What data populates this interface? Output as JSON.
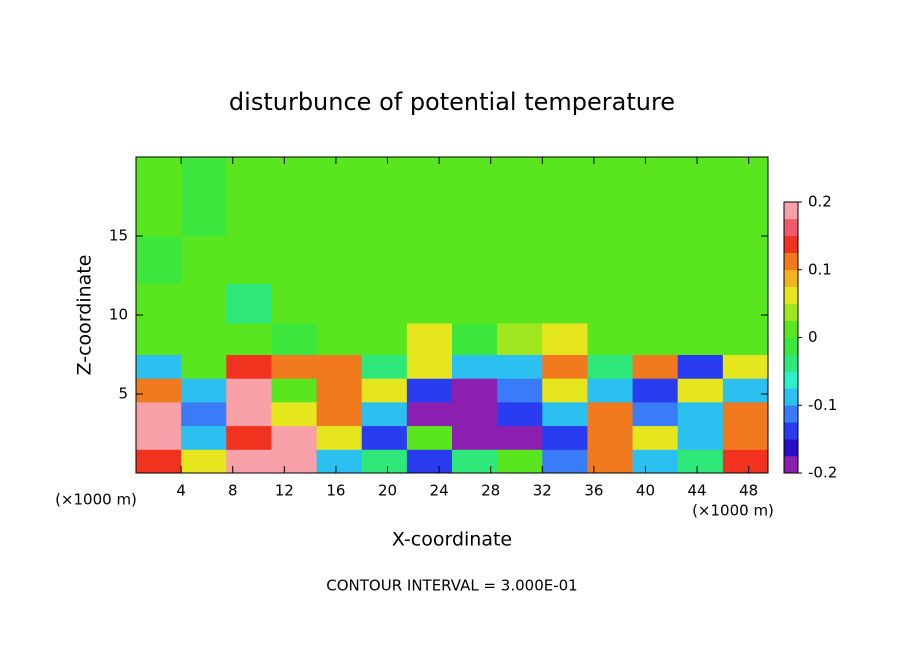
{
  "chart_data": {
    "type": "heatmap",
    "title": "disturbunce of potential temperature",
    "x_label": "X-coordinate",
    "y_label": "Z-coordinate",
    "x_unit": "(×1000 m)",
    "x_unit_right": "(×1000 m)",
    "footnote": "CONTOUR INTERVAL = 3.000E-01",
    "xlim": [
      0.5,
      49.5
    ],
    "ylim": [
      0,
      20
    ],
    "xticks": [
      4,
      8,
      12,
      16,
      20,
      24,
      28,
      32,
      36,
      40,
      44,
      48
    ],
    "yticks": [
      5,
      10,
      15
    ],
    "x_edges": [
      0.5,
      4,
      7.5,
      11,
      14.5,
      18,
      21.5,
      25,
      28.5,
      32,
      35.5,
      39,
      42.5,
      46,
      49.5
    ],
    "y_edges": [
      0,
      1.5,
      3,
      4.5,
      6,
      7.5,
      9.5,
      12,
      15,
      20
    ],
    "z": [
      [
        0.15,
        0.05,
        0.2,
        0.2,
        -0.1,
        -0.05,
        -0.15,
        -0.05,
        0.0,
        -0.12,
        0.1,
        -0.1,
        -0.05,
        0.15
      ],
      [
        0.2,
        -0.1,
        0.15,
        0.2,
        0.05,
        -0.15,
        0.0,
        -0.2,
        -0.2,
        -0.15,
        0.12,
        0.05,
        -0.1,
        0.1
      ],
      [
        0.2,
        -0.12,
        0.18,
        0.05,
        0.1,
        -0.1,
        -0.18,
        -0.2,
        -0.15,
        -0.1,
        0.1,
        -0.12,
        -0.1,
        0.12
      ],
      [
        0.1,
        -0.1,
        0.2,
        0.0,
        0.12,
        0.05,
        -0.15,
        -0.2,
        -0.12,
        0.05,
        -0.1,
        -0.15,
        0.05,
        -0.1
      ],
      [
        -0.1,
        0.02,
        0.15,
        0.1,
        0.1,
        -0.05,
        0.05,
        -0.08,
        -0.1,
        0.1,
        -0.05,
        0.1,
        -0.15,
        0.05
      ],
      [
        0.0,
        0.0,
        0.02,
        -0.02,
        0.0,
        0.02,
        0.05,
        -0.02,
        0.03,
        0.05,
        0.0,
        0.02,
        0.0,
        0.0
      ],
      [
        0.01,
        0.02,
        -0.03,
        0.0,
        0.0,
        0.0,
        0.0,
        0.0,
        0.0,
        0.0,
        0.0,
        0.01,
        0.0,
        0.0
      ],
      [
        -0.01,
        0.0,
        0.0,
        0.0,
        0.0,
        0.0,
        0.0,
        0.0,
        0.0,
        0.0,
        0.01,
        0.0,
        0.0,
        0.0
      ],
      [
        0.0,
        -0.01,
        0.0,
        0.0,
        0.0,
        0.0,
        0.0,
        0.0,
        0.0,
        0.0,
        0.0,
        0.0,
        0.01,
        0.0
      ]
    ],
    "clim": [
      -0.2,
      0.2
    ],
    "cticks": [
      -0.2,
      -0.1,
      0,
      0.1,
      0.2
    ],
    "colors": [
      "#8a1fb0",
      "#2a0fc8",
      "#2a3cf0",
      "#3a7cf8",
      "#2cc0f0",
      "#2ef0c8",
      "#2ee87a",
      "#3ce63c",
      "#5ae61e",
      "#a0e61e",
      "#e6e61e",
      "#f2b41e",
      "#f27a1e",
      "#f0321e",
      "#f05a6e",
      "#f8a0a8"
    ]
  }
}
